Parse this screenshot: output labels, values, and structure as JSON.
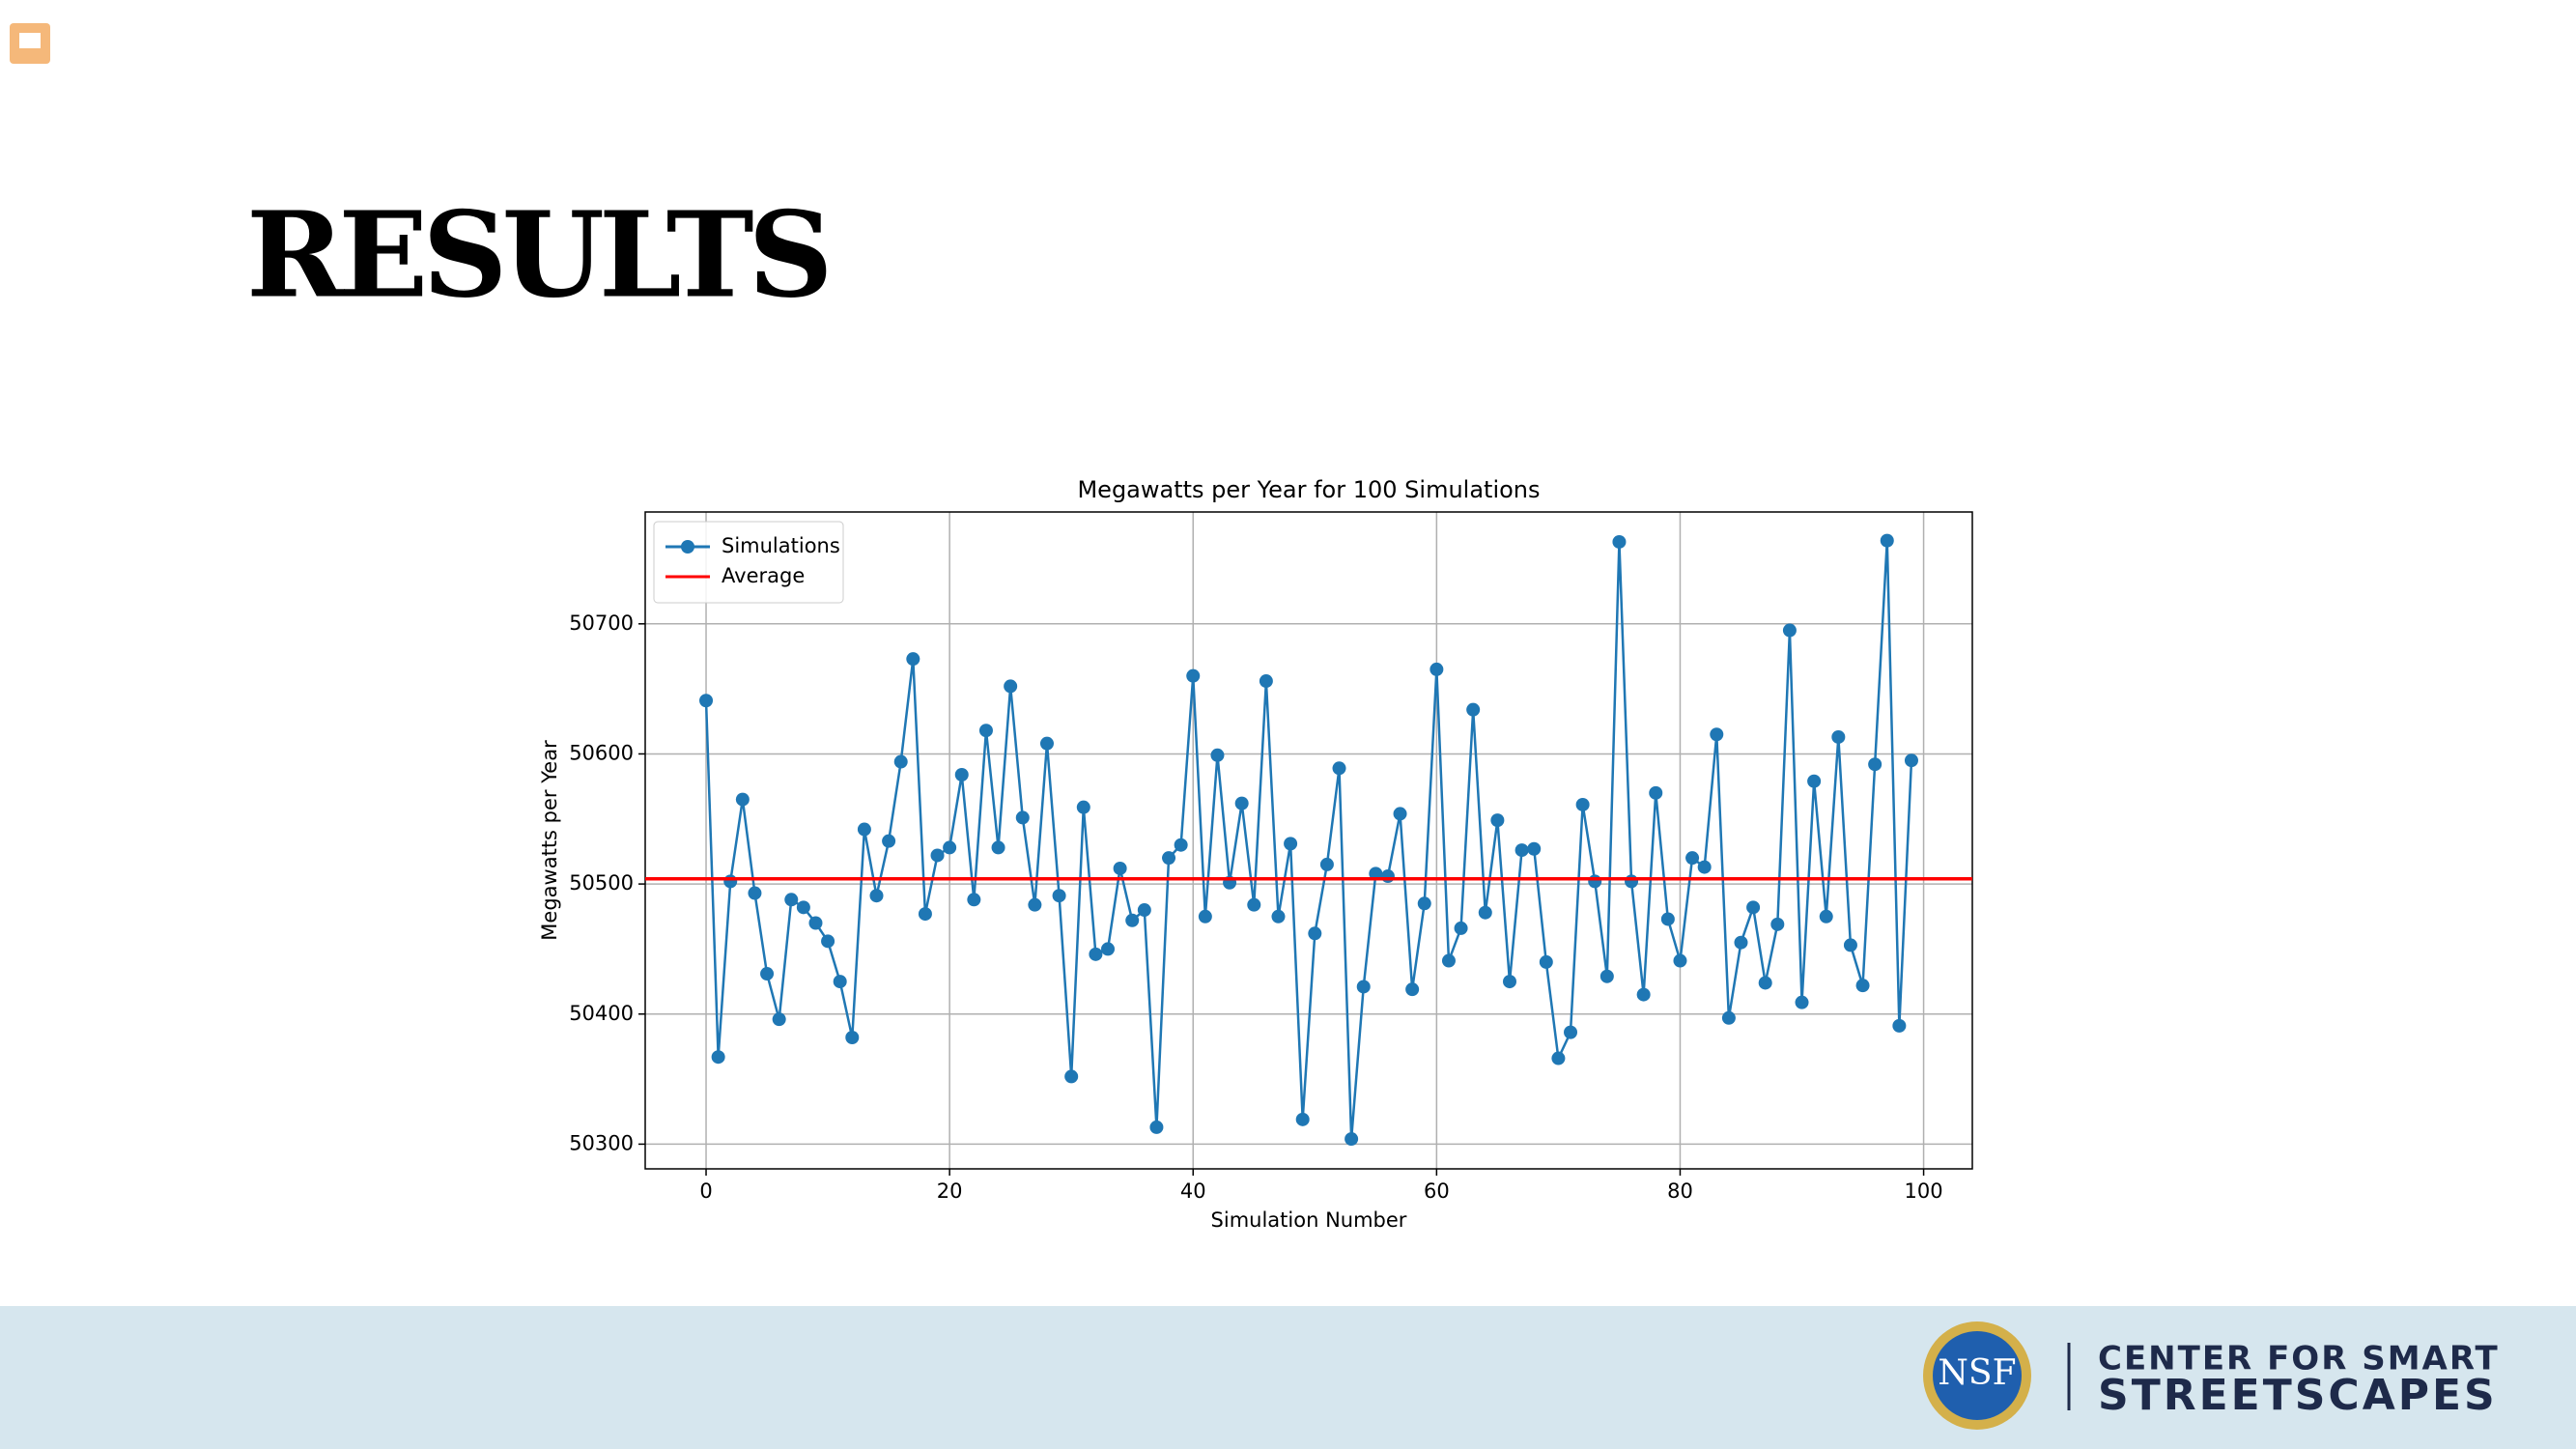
{
  "slide": {
    "title": "RESULTS"
  },
  "footer": {
    "logo": "NSF",
    "org_line1": "CENTER FOR SMART",
    "org_line2": "STREETSCAPES"
  },
  "chart_data": {
    "type": "line",
    "title": "Megawatts per Year for 100 Simulations",
    "x_label": "Simulation Number",
    "y_label": "Megawatts per Year",
    "x": [
      0,
      1,
      2,
      3,
      4,
      5,
      6,
      7,
      8,
      9,
      10,
      11,
      12,
      13,
      14,
      15,
      16,
      17,
      18,
      19,
      20,
      21,
      22,
      23,
      24,
      25,
      26,
      27,
      28,
      29,
      30,
      31,
      32,
      33,
      34,
      35,
      36,
      37,
      38,
      39,
      40,
      41,
      42,
      43,
      44,
      45,
      46,
      47,
      48,
      49,
      50,
      51,
      52,
      53,
      54,
      55,
      56,
      57,
      58,
      59,
      60,
      61,
      62,
      63,
      64,
      65,
      66,
      67,
      68,
      69,
      70,
      71,
      72,
      73,
      74,
      75,
      76,
      77,
      78,
      79,
      80,
      81,
      82,
      83,
      84,
      85,
      86,
      87,
      88,
      89,
      90,
      91,
      92,
      93,
      94,
      95,
      96,
      97,
      98,
      99
    ],
    "series": [
      {
        "name": "Simulations",
        "color": "#1f77b4",
        "values": [
          50641,
          50367,
          50502,
          50565,
          50493,
          50431,
          50396,
          50488,
          50482,
          50470,
          50456,
          50425,
          50382,
          50542,
          50491,
          50533,
          50594,
          50673,
          50477,
          50522,
          50528,
          50584,
          50488,
          50618,
          50528,
          50652,
          50551,
          50484,
          50608,
          50491,
          50352,
          50559,
          50446,
          50450,
          50512,
          50472,
          50480,
          50313,
          50520,
          50530,
          50660,
          50475,
          50599,
          50501,
          50562,
          50484,
          50656,
          50475,
          50531,
          50319,
          50462,
          50515,
          50589,
          50304,
          50421,
          50508,
          50506,
          50554,
          50419,
          50485,
          50665,
          50441,
          50466,
          50634,
          50478,
          50549,
          50425,
          50526,
          50527,
          50440,
          50366,
          50386,
          50561,
          50502,
          50429,
          50763,
          50502,
          50415,
          50570,
          50473,
          50441,
          50520,
          50513,
          50615,
          50397,
          50455,
          50482,
          50424,
          50469,
          50695,
          50409,
          50579,
          50475,
          50613,
          50453,
          50422,
          50592,
          50764,
          50391,
          50595
        ]
      }
    ],
    "reference_lines": [
      {
        "name": "Average",
        "color": "#ff0000",
        "value": 50504
      }
    ],
    "xlim": [
      -5,
      104
    ],
    "ylim": [
      50281,
      50786
    ],
    "xticks": [
      0,
      20,
      40,
      60,
      80,
      100
    ],
    "yticks": [
      50300,
      50400,
      50500,
      50600,
      50700
    ],
    "grid": true,
    "legend": "upper left"
  }
}
